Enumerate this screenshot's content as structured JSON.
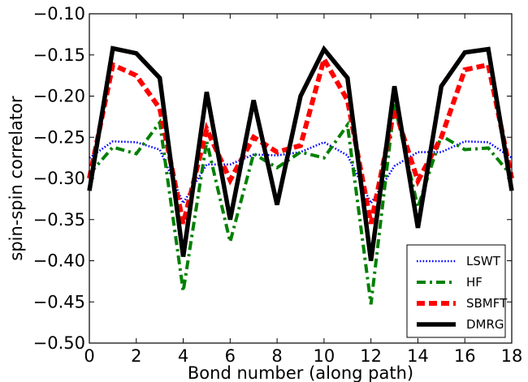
{
  "chart_data": {
    "type": "line",
    "xlabel": "Bond number (along path)",
    "ylabel": "spin-spin correlator",
    "xlim": [
      0,
      18
    ],
    "ylim": [
      -0.5,
      -0.1
    ],
    "xticks": [
      0,
      2,
      4,
      6,
      8,
      10,
      12,
      14,
      16,
      18
    ],
    "xtick_labels": [
      "0",
      "2",
      "4",
      "6",
      "8",
      "10",
      "12",
      "14",
      "16",
      "18"
    ],
    "yticks": [
      -0.5,
      -0.45,
      -0.4,
      -0.35,
      -0.3,
      -0.25,
      -0.2,
      -0.15,
      -0.1
    ],
    "ytick_labels": [
      "−0.50",
      "−0.45",
      "−0.40",
      "−0.35",
      "−0.30",
      "−0.25",
      "−0.20",
      "−0.15",
      "−0.10"
    ],
    "grid": false,
    "legend_position": "bottom-right",
    "x": [
      0,
      1,
      2,
      3,
      4,
      5,
      6,
      7,
      8,
      9,
      10,
      11,
      12,
      13,
      14,
      15,
      16,
      17,
      18
    ],
    "series": [
      {
        "name": "LSWT",
        "color": "#0000ff",
        "style": "dotted",
        "values": [
          -0.275,
          -0.255,
          -0.256,
          -0.265,
          -0.33,
          -0.283,
          -0.283,
          -0.271,
          -0.272,
          -0.268,
          -0.256,
          -0.272,
          -0.33,
          -0.285,
          -0.268,
          -0.268,
          -0.255,
          -0.256,
          -0.275
        ]
      },
      {
        "name": "HF",
        "color": "#008000",
        "style": "dashdot",
        "values": [
          -0.295,
          -0.262,
          -0.27,
          -0.232,
          -0.437,
          -0.255,
          -0.377,
          -0.27,
          -0.287,
          -0.268,
          -0.275,
          -0.235,
          -0.453,
          -0.21,
          -0.335,
          -0.248,
          -0.265,
          -0.263,
          -0.297
        ]
      },
      {
        "name": "SBMFT",
        "color": "#ff0000",
        "style": "dashed",
        "values": [
          -0.3,
          -0.162,
          -0.175,
          -0.215,
          -0.355,
          -0.24,
          -0.302,
          -0.25,
          -0.268,
          -0.26,
          -0.155,
          -0.205,
          -0.355,
          -0.215,
          -0.303,
          -0.25,
          -0.168,
          -0.162,
          -0.3
        ]
      },
      {
        "name": "DMRG",
        "color": "#000000",
        "style": "solid",
        "values": [
          -0.315,
          -0.142,
          -0.148,
          -0.178,
          -0.395,
          -0.195,
          -0.35,
          -0.205,
          -0.332,
          -0.2,
          -0.143,
          -0.178,
          -0.4,
          -0.188,
          -0.36,
          -0.188,
          -0.147,
          -0.143,
          -0.315
        ]
      }
    ]
  }
}
